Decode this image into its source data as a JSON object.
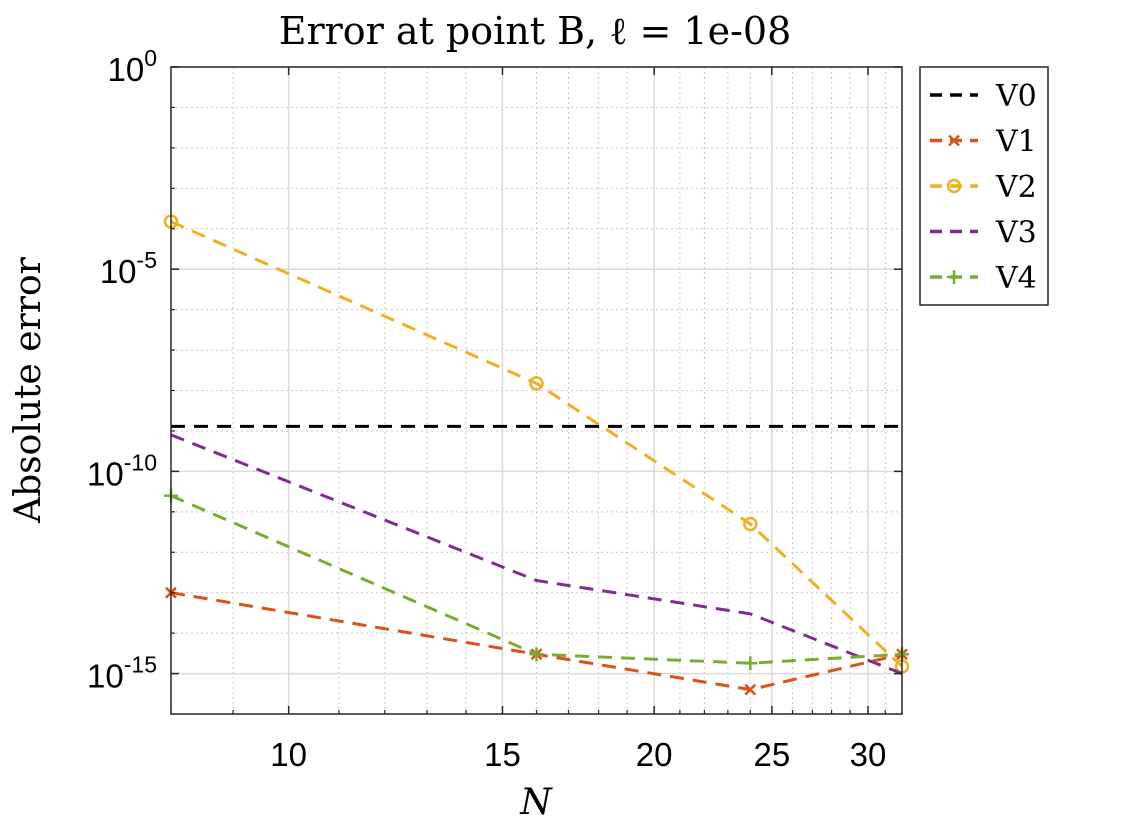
{
  "chart_data": {
    "type": "line",
    "title": "Error at point B, ℓ = 1e-08",
    "xlabel": "N",
    "ylabel": "Absolute error",
    "x_scale": "log",
    "y_scale": "log",
    "xlim": [
      8,
      32
    ],
    "ylim": [
      1e-16,
      1
    ],
    "xticks": [
      10,
      15,
      20,
      25,
      30
    ],
    "xtick_labels": [
      "10",
      "15",
      "20",
      "25",
      "30"
    ],
    "yticks": [
      1e-15,
      1e-10,
      1e-05,
      1
    ],
    "ytick_labels": [
      {
        "base": "10",
        "exp": "-15"
      },
      {
        "base": "10",
        "exp": "-10"
      },
      {
        "base": "10",
        "exp": "-5"
      },
      {
        "base": "10",
        "exp": "0"
      }
    ],
    "grid": true,
    "legend_position": "outside-top-right",
    "series": [
      {
        "name": "V0",
        "color": "#000000",
        "marker": "none",
        "x": [
          8,
          32
        ],
        "y": [
          1.3e-09,
          1.3e-09
        ]
      },
      {
        "name": "V1",
        "color": "#D95319",
        "marker": "x",
        "x": [
          8,
          16,
          24,
          32
        ],
        "y": [
          1e-13,
          3e-15,
          4e-16,
          3e-15
        ]
      },
      {
        "name": "V2",
        "color": "#EDB120",
        "marker": "o",
        "x": [
          8,
          16,
          24,
          32
        ],
        "y": [
          0.00015,
          1.5e-08,
          5e-12,
          1.5e-15
        ]
      },
      {
        "name": "V3",
        "color": "#7E2F8E",
        "marker": "none",
        "x": [
          8,
          16,
          24,
          32
        ],
        "y": [
          8e-10,
          2e-13,
          3e-14,
          1e-15
        ]
      },
      {
        "name": "V4",
        "color": "#77AC30",
        "marker": "+",
        "x": [
          8,
          16,
          24,
          32
        ],
        "y": [
          2.5e-11,
          3e-15,
          1.8e-15,
          3e-15
        ]
      }
    ]
  }
}
